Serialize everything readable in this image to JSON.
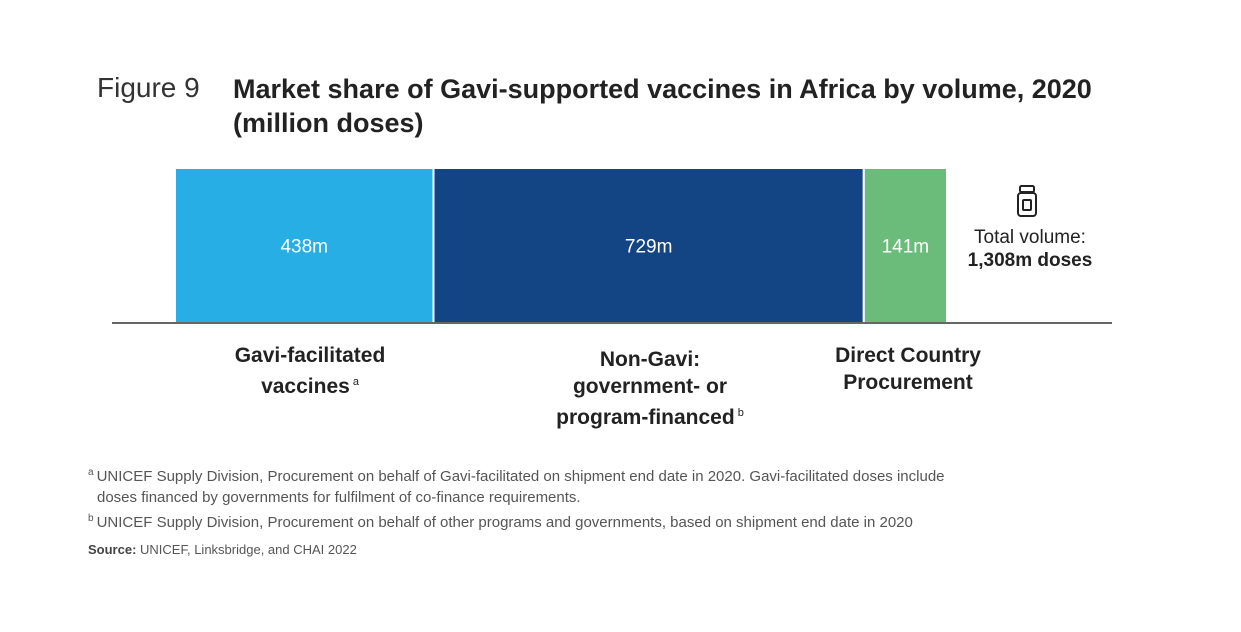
{
  "figure_label": "Figure 9",
  "title": "Market share of Gavi-supported vaccines in Africa by volume, 2020 (million doses)",
  "chart_data": {
    "type": "bar",
    "stacked": true,
    "orientation": "horizontal",
    "categories": [
      "Gavi-facilitated vaccines",
      "Non-Gavi: government- or program-financed",
      "Direct Country Procurement"
    ],
    "values": [
      438,
      729,
      141
    ],
    "value_labels": [
      "438m",
      "729m",
      "141m"
    ],
    "colors": [
      "#27AEE4",
      "#134584",
      "#6BBC7B"
    ],
    "category_label_lines": [
      [
        "Gavi-facilitated",
        "vaccines"
      ],
      [
        "Non-Gavi:",
        "government- or",
        "program-financed"
      ],
      [
        "Direct Country",
        "Procurement"
      ]
    ],
    "footnote_marks": [
      "a",
      "b",
      ""
    ],
    "total_label": "Total volume:",
    "total_value": "1,308m doses",
    "total_icon": "vaccine-vial-icon"
  },
  "footnotes": [
    {
      "mark": "a",
      "lines": [
        "UNICEF Supply Division, Procurement on behalf of Gavi-facilitated on shipment end date in 2020. Gavi-facilitated doses include",
        "doses financed by governments for fulfilment of co-finance requirements."
      ]
    },
    {
      "mark": "b",
      "lines": [
        "UNICEF Supply Division, Procurement on behalf of other programs and governments, based on shipment end date in 2020"
      ]
    }
  ],
  "source": {
    "label": "Source:",
    "text": "UNICEF, Linksbridge, and CHAI 2022"
  }
}
